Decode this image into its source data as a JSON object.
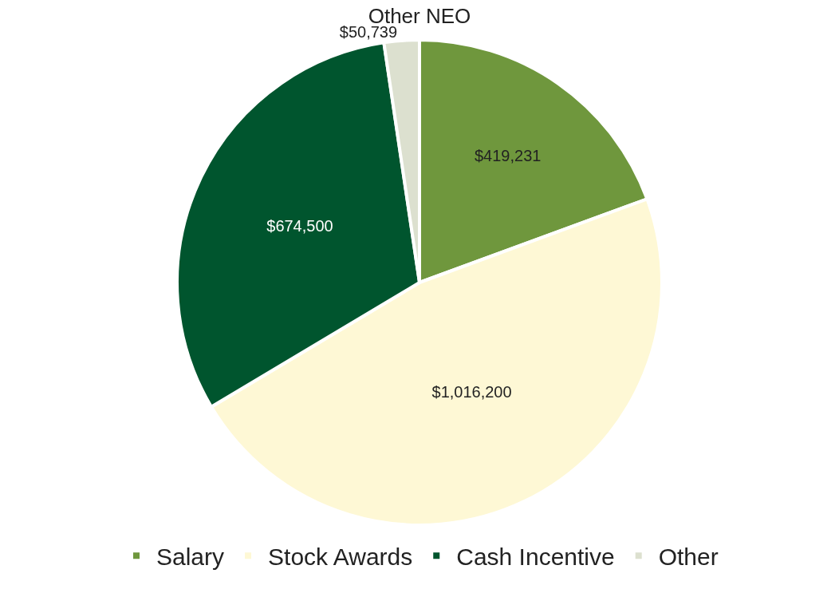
{
  "chart_data": {
    "type": "pie",
    "title": "Other NEO",
    "categories": [
      "Salary",
      "Stock Awards",
      "Cash Incentive",
      "Other"
    ],
    "values": [
      419231,
      1016200,
      674500,
      50739
    ],
    "colors": [
      "#6f973d",
      "#fef8d5",
      "#00552e",
      "#dce0cf"
    ],
    "value_labels": [
      "$419,231",
      "$1,016,200",
      "$674,500",
      "$50,739"
    ],
    "legend": "bottom"
  }
}
